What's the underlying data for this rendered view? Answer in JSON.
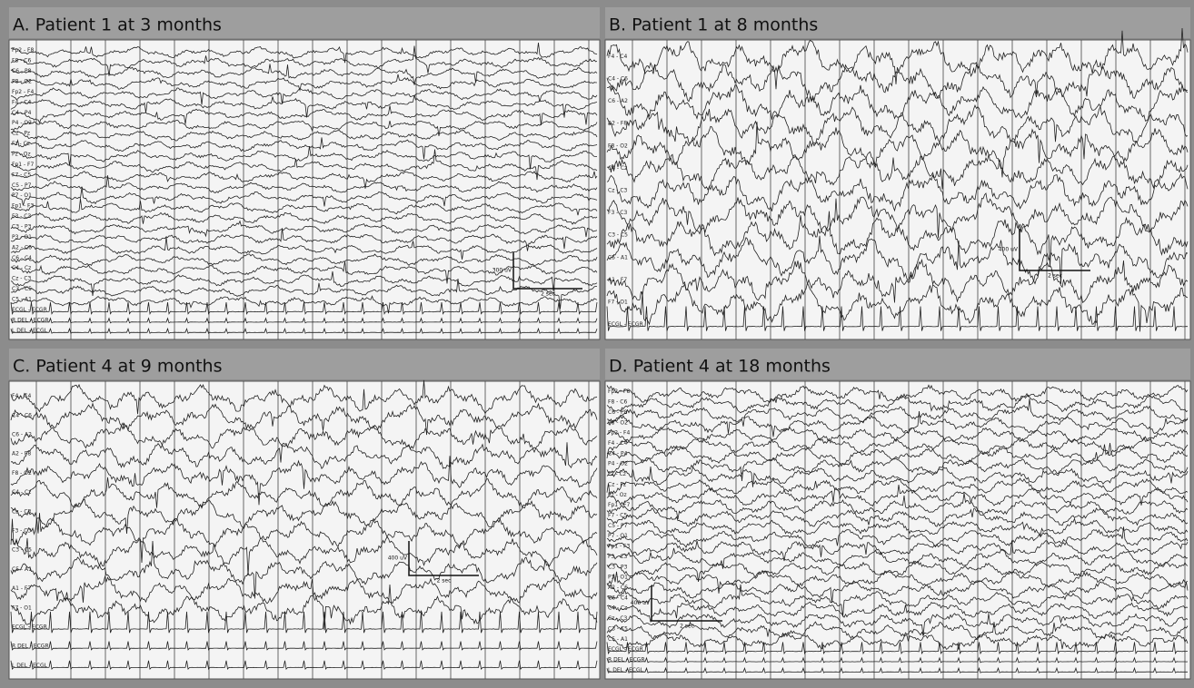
{
  "panels": [
    {
      "title": "A. Patient 1 at 3 months",
      "channels": [
        "Fp2 - F8",
        "F8 - C6",
        "C6 - P8",
        "P8 - O2",
        "Fp2 - F4",
        "F4 - C4",
        "C4 - P4",
        "P4 - O2",
        "Cz - Pz",
        "Fz - Cz",
        "Pz - Oz",
        "Fp1 - F7",
        "F7 - C5",
        "C5 - P7",
        "P7 - O1",
        "Fp1 - F3",
        "F3 - C3",
        "C3 - P3",
        "P3 - O1",
        "A2 - C6",
        "C6 - C4",
        "C4 - Cz",
        "Cz - C3",
        "C3 - C5",
        "C5 - A1",
        "ECGL - ECGR",
        "R DEL - ECGR",
        "L DEL - ECGL"
      ],
      "scale": {
        "amplitude": "300 uV",
        "time": "2 sec"
      }
    },
    {
      "title": "B. Patient 1 at 8 months",
      "channels": [
        "F4 - C4",
        "C4 - C6",
        "C6 - A2",
        "A2 - F8",
        "F8 - O2",
        "C4 - Cz",
        "Cz - C3",
        "F3 - C3",
        "C3 - C5",
        "C5 - A1",
        "A1 - F7",
        "F7 - O1",
        "ECGL - ECGR"
      ],
      "scale": {
        "amplitude": "400 uV",
        "time": "2 sec"
      }
    },
    {
      "title": "C. Patient 4 at 9 months",
      "channels": [
        "F4 - C4",
        "C4 - C6",
        "C6 - A2",
        "A2 - F8",
        "F8 - O2",
        "C4 - Cz",
        "Cz - C3",
        "F3 - C3",
        "C3 - C5",
        "C5 - A1",
        "A1 - F7",
        "F7 - O1",
        "ECGL - ECGR",
        "R DEL - ECGR",
        "L DEL - ECGL"
      ],
      "scale": {
        "amplitude": "400 uV",
        "time": "2 sec"
      }
    },
    {
      "title": "D. Patient 4 at 18 months",
      "channels": [
        "Fp2 - F8",
        "F8 - C6",
        "C6 - P8",
        "P8 - O2",
        "Fp2 - F4",
        "F4 - C4",
        "C4 - P4",
        "P4 - O2",
        "Fz - Cz",
        "Cz - Pz",
        "Pz - Oz",
        "Fp1 - F7",
        "F7 - C5",
        "C5 - P7",
        "P7 - O1",
        "Fp1 - F3",
        "F3 - C3",
        "C3 - P3",
        "P3 - O1",
        "A2 - C6",
        "C6 - C4",
        "C4 - Cz",
        "Cz - C3",
        "C3 - C5",
        "C5 - A1",
        "ECGL - ECGR",
        "R DEL - ECGR",
        "L DEL - ECGL"
      ],
      "scale": {
        "amplitude": "400 uV",
        "time": "2 sec"
      }
    }
  ]
}
